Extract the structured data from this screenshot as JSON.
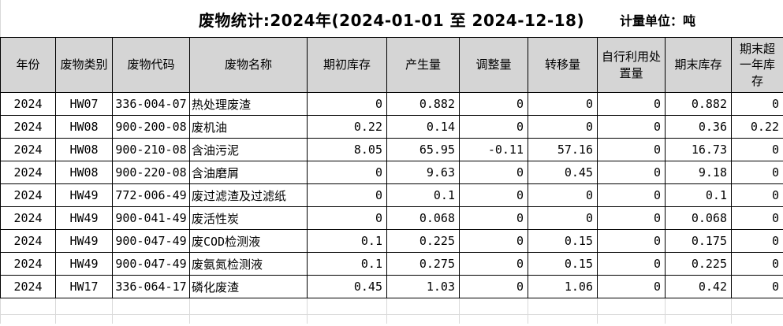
{
  "header": {
    "title": "废物统计:2024年(2024-01-01 至 2024-12-18)",
    "unit_label": "计量单位：吨"
  },
  "colors": {
    "header_bg": "#d5d5d5",
    "grid_border": "#000000",
    "ghost_grid": "#d9d9d9",
    "background": "#ffffff"
  },
  "table": {
    "columns": [
      {
        "key": "year",
        "label": "年份"
      },
      {
        "key": "waste-category",
        "label": "废物类别"
      },
      {
        "key": "waste-code",
        "label": "废物代码"
      },
      {
        "key": "waste-name",
        "label": "废物名称"
      },
      {
        "key": "opening-stock",
        "label": "期初库存"
      },
      {
        "key": "generated-amount",
        "label": "产生量"
      },
      {
        "key": "adjustment-amount",
        "label": "调整量"
      },
      {
        "key": "transferred-amount",
        "label": "转移量"
      },
      {
        "key": "self-utilized-disposed-amount",
        "label": "自行利用处置量"
      },
      {
        "key": "closing-stock",
        "label": "期末库存"
      },
      {
        "key": "closing-stock-over-one-year",
        "label": "期末超一年库存"
      }
    ],
    "rows": [
      [
        "2024",
        "HW07",
        "336-004-07",
        "热处理废渣",
        "0",
        "0.882",
        "0",
        "0",
        "0",
        "0.882",
        "0"
      ],
      [
        "2024",
        "HW08",
        "900-200-08",
        "废机油",
        "0.22",
        "0.14",
        "0",
        "0",
        "0",
        "0.36",
        "0.22"
      ],
      [
        "2024",
        "HW08",
        "900-210-08",
        "含油污泥",
        "8.05",
        "65.95",
        "-0.11",
        "57.16",
        "0",
        "16.73",
        "0"
      ],
      [
        "2024",
        "HW08",
        "900-220-08",
        "含油磨屑",
        "0",
        "9.63",
        "0",
        "0.45",
        "0",
        "9.18",
        "0"
      ],
      [
        "2024",
        "HW49",
        "772-006-49",
        "废过滤渣及过滤纸",
        "0",
        "0.1",
        "0",
        "0",
        "0",
        "0.1",
        "0"
      ],
      [
        "2024",
        "HW49",
        "900-041-49",
        "废活性炭",
        "0",
        "0.068",
        "0",
        "0",
        "0",
        "0.068",
        "0"
      ],
      [
        "2024",
        "HW49",
        "900-047-49",
        "废COD检测液",
        "0.1",
        "0.225",
        "0",
        "0.15",
        "0",
        "0.175",
        "0"
      ],
      [
        "2024",
        "HW49",
        "900-047-49",
        "废氨氮检测液",
        "0.1",
        "0.275",
        "0",
        "0.15",
        "0",
        "0.225",
        "0"
      ],
      [
        "2024",
        "HW17",
        "336-064-17",
        "磷化废渣",
        "0.45",
        "1.03",
        "0",
        "1.06",
        "0",
        "0.42",
        "0"
      ]
    ]
  }
}
